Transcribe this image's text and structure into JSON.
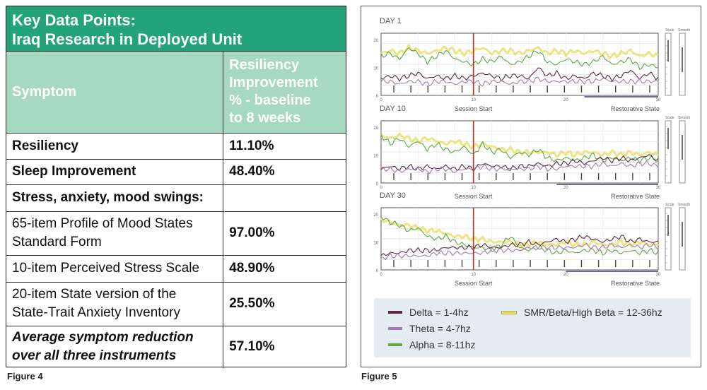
{
  "figure4": {
    "title_lines": [
      "Key Data Points:",
      "Iraq Research in Deployed Unit"
    ],
    "header": {
      "col1": "Symptom",
      "col2_lines": [
        "Resiliency",
        "Improvement",
        "% - baseline",
        "to 8 weeks"
      ]
    },
    "rows": [
      {
        "label_lines": [
          "Resiliency"
        ],
        "value": "11.10%",
        "style": "bold"
      },
      {
        "label_lines": [
          "Sleep Improvement"
        ],
        "value": "48.40%",
        "style": "bold"
      },
      {
        "label_lines": [
          "Stress, anxiety, mood swings:"
        ],
        "value": "",
        "style": "bold"
      },
      {
        "label_lines": [
          "65-item Profile of Mood States",
          "Standard Form"
        ],
        "value": "97.00%",
        "style": "normal"
      },
      {
        "label_lines": [
          "10-item Perceived Stress Scale"
        ],
        "value": "48.90%",
        "style": "normal"
      },
      {
        "label_lines": [
          "20-item State version of the",
          "State-Trait Anxiety Inventory"
        ],
        "value": "25.50%",
        "style": "normal"
      },
      {
        "label_lines": [
          "Average symptom reduction",
          "over all three instruments"
        ],
        "value": "57.10%",
        "style": "bolditalic"
      }
    ],
    "caption": "Figure 4"
  },
  "figure5": {
    "caption": "Figure 5",
    "legend": [
      {
        "label": "Delta = 1-4hz",
        "color": "#5a2a40"
      },
      {
        "label": "SMR/Beta/High Beta = 12-36hz",
        "color": "#e8e070"
      },
      {
        "label": "Theta = 4-7hz",
        "color": "#a07ab0"
      },
      {
        "label": "Alpha = 8-11hz",
        "color": "#5aaa40"
      }
    ]
  },
  "chart_data": [
    {
      "type": "line",
      "title": "DAY 1",
      "ylim": [
        0,
        20
      ],
      "yticks": [
        0,
        10,
        20
      ],
      "xlim": [
        0,
        30
      ],
      "xticks": [
        0,
        10,
        20,
        30
      ],
      "annotations": {
        "session_start": "Session Start",
        "restorative_state": "Restorative State",
        "session_start_x": 10,
        "restorative_range": [
          22,
          30
        ]
      },
      "side_labels": [
        "Scale",
        "Smooth"
      ],
      "series": [
        {
          "name": "SMR/Beta/High Beta = 12-36hz",
          "color": "#e8e070",
          "values": [
            15,
            16,
            15,
            17,
            16,
            15,
            16,
            17,
            16,
            15,
            16,
            17,
            15,
            16,
            16,
            15,
            16,
            17,
            15,
            16,
            15,
            16,
            15,
            16,
            15,
            14,
            15,
            16,
            14,
            15,
            14
          ]
        },
        {
          "name": "Alpha = 8-11hz",
          "color": "#5aaa40",
          "values": [
            14,
            15,
            13,
            17,
            15,
            12,
            14,
            16,
            13,
            12,
            11,
            13,
            12,
            14,
            11,
            12,
            14,
            16,
            12,
            11,
            13,
            12,
            11,
            12,
            14,
            11,
            12,
            13,
            10,
            11,
            10
          ]
        },
        {
          "name": "Delta = 1-4hz",
          "color": "#5a2a40",
          "values": [
            6,
            7,
            6,
            7,
            8,
            6,
            7,
            6,
            7,
            6,
            7,
            8,
            7,
            6,
            7,
            7,
            6,
            10,
            7,
            8,
            6,
            7,
            6,
            8,
            7,
            6,
            7,
            9,
            6,
            8,
            6
          ]
        },
        {
          "name": "Theta = 4-7hz",
          "color": "#a07ab0",
          "values": [
            5,
            5,
            4,
            5,
            5,
            4,
            5,
            5,
            4,
            5,
            5,
            4,
            5,
            5,
            4,
            5,
            5,
            6,
            5,
            5,
            5,
            5,
            5,
            5,
            6,
            5,
            5,
            5,
            5,
            5,
            5
          ]
        }
      ]
    },
    {
      "type": "line",
      "title": "DAY 10",
      "ylim": [
        0,
        20
      ],
      "yticks": [
        0,
        10,
        20
      ],
      "xlim": [
        0,
        30
      ],
      "xticks": [
        0,
        10,
        20,
        30
      ],
      "annotations": {
        "session_start": "Session Start",
        "restorative_state": "Restorative State",
        "session_start_x": 10,
        "restorative_range": [
          19,
          30
        ]
      },
      "side_labels": [
        "Scale",
        "Smooth"
      ],
      "series": [
        {
          "name": "SMR/Beta/High Beta = 12-36hz",
          "color": "#e8e070",
          "values": [
            17,
            16,
            17,
            16,
            15,
            16,
            15,
            14,
            15,
            14,
            13,
            14,
            13,
            12,
            12,
            11,
            11,
            11,
            11,
            10,
            11,
            10,
            11,
            11,
            10,
            11,
            10,
            11,
            10,
            11,
            10
          ]
        },
        {
          "name": "Alpha = 8-11hz",
          "color": "#5aaa40",
          "values": [
            17,
            14,
            16,
            13,
            15,
            12,
            14,
            12,
            11,
            13,
            10,
            14,
            11,
            12,
            9,
            11,
            10,
            12,
            9,
            8,
            9,
            8,
            9,
            10,
            8,
            9,
            8,
            9,
            8,
            9,
            8
          ]
        },
        {
          "name": "Delta = 1-4hz",
          "color": "#5a2a40",
          "values": [
            5,
            6,
            5,
            6,
            5,
            6,
            5,
            6,
            5,
            6,
            5,
            7,
            6,
            6,
            5,
            6,
            6,
            7,
            6,
            7,
            7,
            8,
            7,
            8,
            9,
            8,
            9,
            8,
            9,
            10,
            8
          ]
        },
        {
          "name": "Theta = 4-7hz",
          "color": "#a07ab0",
          "values": [
            5,
            5,
            4,
            5,
            5,
            4,
            5,
            5,
            4,
            5,
            5,
            6,
            5,
            5,
            5,
            5,
            5,
            6,
            5,
            5,
            6,
            6,
            6,
            6,
            7,
            6,
            7,
            6,
            7,
            7,
            6
          ]
        }
      ]
    },
    {
      "type": "line",
      "title": "DAY 30",
      "ylim": [
        0,
        20
      ],
      "yticks": [
        0,
        10,
        20
      ],
      "xlim": [
        0,
        30
      ],
      "xticks": [
        0,
        10,
        20,
        30
      ],
      "annotations": {
        "session_start": "Session Start",
        "restorative_state": "Restorative State",
        "session_start_x": 10,
        "restorative_range": [
          20,
          30
        ]
      },
      "side_labels": [
        "Scale",
        "Smooth"
      ],
      "series": [
        {
          "name": "SMR/Beta/High Beta = 12-36hz",
          "color": "#e8e070",
          "values": [
            18,
            17,
            16,
            16,
            15,
            14,
            14,
            13,
            12,
            12,
            11,
            11,
            10,
            10,
            10,
            9,
            9,
            10,
            9,
            9,
            10,
            9,
            9,
            10,
            9,
            9,
            10,
            9,
            10,
            9,
            9
          ]
        },
        {
          "name": "Alpha = 8-11hz",
          "color": "#5aaa40",
          "values": [
            19,
            17,
            16,
            14,
            15,
            12,
            11,
            12,
            10,
            9,
            8,
            8,
            7,
            9,
            12,
            8,
            7,
            8,
            7,
            6,
            7,
            6,
            7,
            7,
            6,
            7,
            6,
            7,
            6,
            7,
            6
          ]
        },
        {
          "name": "Delta = 1-4hz",
          "color": "#5a2a40",
          "values": [
            5,
            6,
            6,
            7,
            7,
            7,
            7,
            8,
            8,
            8,
            8,
            9,
            8,
            8,
            9,
            9,
            10,
            9,
            10,
            11,
            10,
            11,
            12,
            11,
            10,
            11,
            12,
            10,
            11,
            10,
            10
          ]
        },
        {
          "name": "Theta = 4-7hz",
          "color": "#a07ab0",
          "values": [
            4,
            5,
            5,
            5,
            5,
            5,
            6,
            6,
            6,
            6,
            6,
            6,
            7,
            7,
            7,
            7,
            8,
            8,
            8,
            8,
            8,
            8,
            9,
            8,
            8,
            9,
            8,
            9,
            8,
            9,
            8
          ]
        }
      ]
    }
  ]
}
